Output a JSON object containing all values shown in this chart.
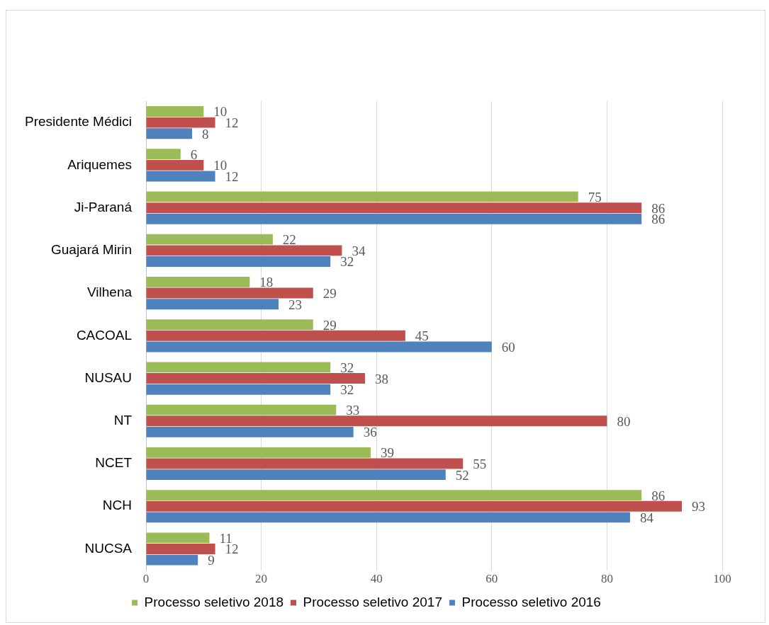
{
  "chart_data": {
    "type": "bar",
    "orientation": "horizontal",
    "categories": [
      "Presidente Médici",
      "Ariquemes",
      "Ji-Paraná",
      "Guajará Mirin",
      "Vilhena",
      "CACOAL",
      "NUSAU",
      "NT",
      "NCET",
      "NCH",
      "NUCSA"
    ],
    "series": [
      {
        "name": "Processo seletivo 2018",
        "color": "#9bbb59",
        "values": [
          10,
          6,
          75,
          22,
          18,
          29,
          32,
          33,
          39,
          86,
          11
        ]
      },
      {
        "name": "Processo seletivo 2017",
        "color": "#c0504d",
        "values": [
          12,
          10,
          86,
          34,
          29,
          45,
          38,
          80,
          55,
          93,
          12
        ]
      },
      {
        "name": "Processo seletivo 2016",
        "color": "#4f81bd",
        "values": [
          8,
          12,
          86,
          32,
          23,
          60,
          32,
          36,
          52,
          84,
          9
        ]
      }
    ],
    "xlim": [
      0,
      100
    ],
    "xticks": [
      0,
      20,
      40,
      60,
      80,
      100
    ],
    "grid": "x",
    "legend": "bottom",
    "data_labels": true
  }
}
